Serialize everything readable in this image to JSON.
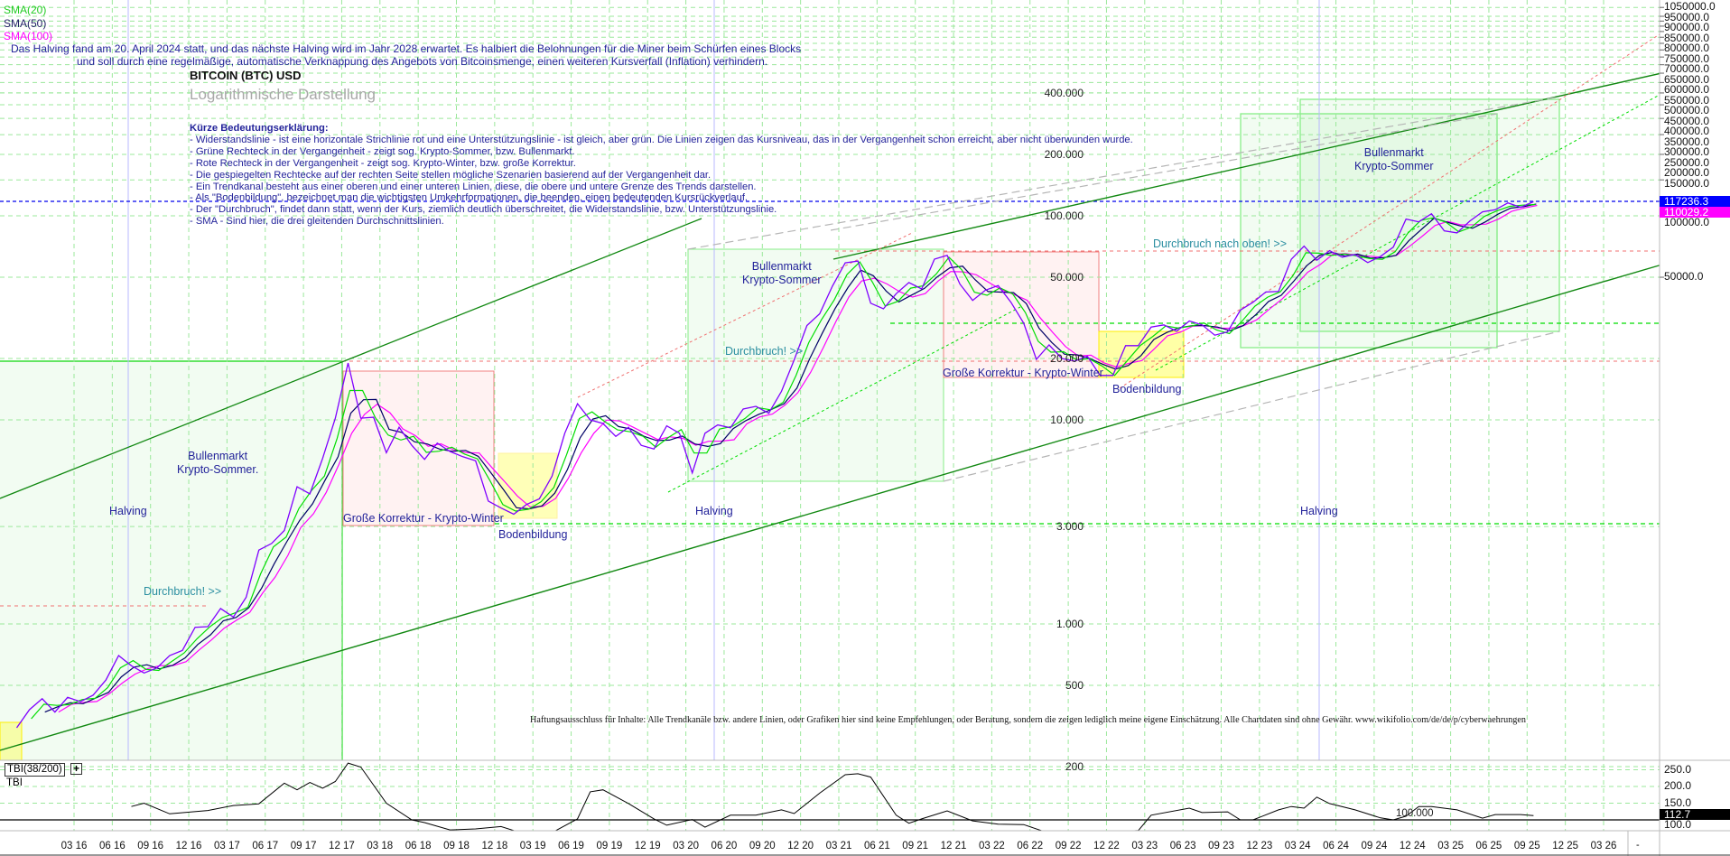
{
  "legend": {
    "sma20": "SMA(20)",
    "sma50": "SMA(50)",
    "sma100": "SMA(100)"
  },
  "info": {
    "line1": "Das Halving fand am 20. April 2024 statt, und das nächste Halving wird im Jahr 2028 erwartet. Es halbiert die Belohnungen für die Miner beim Schürfen eines Blocks",
    "line2": "und soll durch eine regelmäßige, automatische Verknappung des Angebots von Bitcoinsmenge, einen weiteren Kursverfall (Inflation) verhindern."
  },
  "title": "BITCOIN (BTC) USD",
  "subtitle": "Logarithmische Darstellung",
  "explanation": {
    "heading": "Kürze Bedeutungserklärung:",
    "items": [
      "- Widerstandslinie - ist eine horizontale Strichlinie rot und eine Unterstützungslinie - ist gleich, aber grün. Die Linien zeigen das Kursniveau, das in der Vergangenheit schon erreicht, aber nicht überwunden wurde.",
      "- Grüne Rechteck in der Vergangenheit - zeigt sog. Krypto-Sommer, bzw. Bullenmarkt.",
      " - Rote Rechteck in der Vergangenheit - zeigt sog. Krypto-Winter, bzw. große Korrektur.",
      "- Die gespiegelten Rechtecke auf der rechten Seite stellen mögliche Szenarien basierend auf der Vergangenheit dar.",
      "- Ein Trendkanal besteht aus einer oberen und einer unteren Linien, diese, die obere und untere Grenze des Trends darstellen.",
      "- Als \"Bodenbildung\", bezeichnet man die wichtigsten Umkehrformationen, die beenden, einen bedeutenden Kursrückverlauf.",
      "- Der \"Durchbruch\", findet dann statt, wenn der Kurs, ziemlich deutlich überschreitet, die Widerstandslinie, bzw. Unterstützungslinie.",
      "- SMA - Sind hier, die drei gleitenden Durchschnittslinien."
    ]
  },
  "annotations": {
    "bull_1_line1": "Bullenmarkt",
    "bull_1_line2": "Krypto-Sommer.",
    "bull_2_line1": "Bullenmarkt",
    "bull_2_line2": "Krypto-Sommer",
    "bull_3_line1": "Bullenmarkt",
    "bull_3_line2": "Krypto-Sommer",
    "breakout_1": "Durchbruch! >>",
    "breakout_2": "Durchbruch! >>",
    "breakout_3": "Durchbruch nach oben! >>",
    "correction_1": "Große Korrektur - Krypto-Winter",
    "correction_2": "Große Korrektur - Krypto-Winter",
    "bottom_1": "Bodenbildung",
    "bottom_2": "Bodenbildung",
    "halving_1": "Halving",
    "halving_2": "Halving",
    "halving_3": "Halving"
  },
  "disclaimer": "Haftungsausschluss für Inhalte: Alle Trendkanäle bzw. andere Linien, oder Grafiken hier sind keine Empfehlungen, oder Beratung, sondern die zeigen lediglich meine eigene Einschätzung. Alle Chartdaten sind ohne Gewähr.  www.wikifolio.com/de/de/p/cyberwaehrungen",
  "price_axis": {
    "labels": [
      "1050000.0",
      "950000.0",
      "900000.0",
      "850000.0",
      "800000.0",
      "750000.0",
      "700000.0",
      "650000.0",
      "600000.0",
      "550000.0",
      "500000.0",
      "450000.0",
      "400000.0",
      "350000.0",
      "300000.0",
      "250000.0",
      "200000.0",
      "150000.0",
      "100000.0",
      "50000.0"
    ],
    "current_price": "117236.3",
    "sma_value": "110029.2"
  },
  "inner_price_labels": [
    "400.000",
    "200.000",
    "100.000",
    "50.000",
    "20.000",
    "10.000",
    "3.000",
    "1.000",
    "500",
    "200"
  ],
  "indicator_panel": {
    "label": "TBI(38/200)",
    "plus": "+",
    "sub_label": "TBI",
    "level_label": "100.000",
    "axis_labels": [
      "250.0",
      "200.0",
      "150.0",
      "100.0"
    ],
    "current": "112.7"
  },
  "x_axis_end_mark": "-",
  "colors": {
    "price": "#7f00ff",
    "sma20": "#00dd00",
    "sma50": "#000066",
    "sma100": "#ff00ff",
    "current_price_badge": "#0000ff",
    "sma_badge": "#ff00ff",
    "tbi_badge": "#000000",
    "grid": "#9be89b",
    "resistance": "#f07070",
    "support": "#00cc00"
  },
  "chart_data": {
    "type": "line",
    "title": "BITCOIN (BTC) USD",
    "subtitle": "Logarithmische Darstellung",
    "y_scale": "log",
    "ylim": [
      200,
      1050000
    ],
    "grid": true,
    "x_tick_labels": [
      "03 16",
      "06 16",
      "09 16",
      "12 16",
      "03 17",
      "06 17",
      "09 17",
      "12 17",
      "03 18",
      "06 18",
      "09 18",
      "12 18",
      "03 19",
      "06 19",
      "09 19",
      "12 19",
      "03 20",
      "06 20",
      "09 20",
      "12 20",
      "03 21",
      "06 21",
      "09 21",
      "12 21",
      "03 22",
      "06 22",
      "09 22",
      "12 22",
      "03 23",
      "06 23",
      "09 23",
      "12 23",
      "03 24",
      "06 24",
      "09 24",
      "12 24",
      "03 25",
      "06 25",
      "09 25",
      "12 25",
      "03 26"
    ],
    "series": [
      {
        "name": "BTC USD",
        "dates": [
          "2015-10",
          "2015-11",
          "2015-12",
          "2016-01",
          "2016-02",
          "2016-03",
          "2016-04",
          "2016-05",
          "2016-06",
          "2016-07",
          "2016-08",
          "2016-09",
          "2016-10",
          "2016-11",
          "2016-12",
          "2017-01",
          "2017-02",
          "2017-03",
          "2017-04",
          "2017-05",
          "2017-06",
          "2017-07",
          "2017-08",
          "2017-09",
          "2017-10",
          "2017-11",
          "2017-12",
          "2018-01",
          "2018-02",
          "2018-03",
          "2018-04",
          "2018-05",
          "2018-06",
          "2018-07",
          "2018-08",
          "2018-09",
          "2018-10",
          "2018-11",
          "2018-12",
          "2019-01",
          "2019-02",
          "2019-03",
          "2019-04",
          "2019-05",
          "2019-06",
          "2019-07",
          "2019-08",
          "2019-09",
          "2019-10",
          "2019-11",
          "2019-12",
          "2020-01",
          "2020-02",
          "2020-03",
          "2020-04",
          "2020-05",
          "2020-06",
          "2020-07",
          "2020-08",
          "2020-09",
          "2020-10",
          "2020-11",
          "2020-12",
          "2021-01",
          "2021-02",
          "2021-03",
          "2021-04",
          "2021-05",
          "2021-06",
          "2021-07",
          "2021-08",
          "2021-09",
          "2021-10",
          "2021-11",
          "2021-12",
          "2022-01",
          "2022-02",
          "2022-03",
          "2022-04",
          "2022-05",
          "2022-06",
          "2022-07",
          "2022-08",
          "2022-09",
          "2022-10",
          "2022-11",
          "2022-12",
          "2023-01",
          "2023-02",
          "2023-03",
          "2023-04",
          "2023-05",
          "2023-06",
          "2023-07",
          "2023-08",
          "2023-09",
          "2023-10",
          "2023-11",
          "2023-12",
          "2024-01",
          "2024-02",
          "2024-03",
          "2024-04",
          "2024-05",
          "2024-06",
          "2024-07",
          "2024-08",
          "2024-09",
          "2024-10",
          "2024-11",
          "2024-12",
          "2025-01",
          "2025-02",
          "2025-03",
          "2025-04",
          "2025-05",
          "2025-06",
          "2025-07",
          "2025-08",
          "2025-09"
        ],
        "values": [
          310,
          380,
          430,
          370,
          437,
          416,
          448,
          531,
          700,
          624,
          575,
          609,
          700,
          742,
          963,
          970,
          1190,
          1080,
          1350,
          2300,
          2480,
          2870,
          4700,
          4340,
          6470,
          10200,
          19000,
          10200,
          10300,
          6900,
          9200,
          7500,
          6400,
          7700,
          7000,
          6600,
          6300,
          4000,
          3700,
          3450,
          3850,
          4100,
          5300,
          8600,
          12000,
          10000,
          9600,
          8300,
          9200,
          7500,
          7200,
          9350,
          8600,
          5500,
          8600,
          9450,
          9140,
          11300,
          11650,
          10780,
          13800,
          19700,
          29000,
          33100,
          45200,
          58800,
          60000,
          37300,
          35000,
          41500,
          47100,
          43800,
          61300,
          64000,
          46300,
          38500,
          43200,
          45500,
          37700,
          29800,
          19800,
          23300,
          20000,
          19400,
          20500,
          16500,
          16500,
          23100,
          23100,
          28500,
          29200,
          27200,
          30500,
          29200,
          26000,
          27000,
          34500,
          37700,
          42300,
          42600,
          61200,
          71000,
          60600,
          67500,
          62700,
          64600,
          59000,
          63300,
          70200,
          96400,
          93400,
          102400,
          84400,
          82500,
          94200,
          104600,
          107100,
          115700,
          110000,
          117236.3
        ]
      }
    ],
    "moving_averages": [
      {
        "name": "SMA(20)",
        "period_days": 20
      },
      {
        "name": "SMA(50)",
        "period_days": 50
      },
      {
        "name": "SMA(100)",
        "period_days": 100
      }
    ],
    "indicator": {
      "name": "TBI(38/200)",
      "reference_level": 100,
      "ylim": [
        40,
        270
      ],
      "dates": [
        "2016-07",
        "2016-08",
        "2016-10",
        "2017-01",
        "2017-03",
        "2017-05",
        "2017-07",
        "2017-08",
        "2017-09",
        "2017-10",
        "2017-11",
        "2017-12",
        "2018-01",
        "2018-03",
        "2018-05",
        "2018-06",
        "2018-08",
        "2018-10",
        "2018-12",
        "2019-01",
        "2019-02",
        "2019-04",
        "2019-06",
        "2019-07",
        "2019-08",
        "2019-10",
        "2019-12",
        "2020-01",
        "2020-03",
        "2020-04",
        "2020-06",
        "2020-08",
        "2020-10",
        "2020-11",
        "2021-01",
        "2021-03",
        "2021-04",
        "2021-05",
        "2021-07",
        "2021-08",
        "2021-09",
        "2021-11",
        "2022-01",
        "2022-03",
        "2022-05",
        "2022-07",
        "2022-08",
        "2022-10",
        "2022-12",
        "2023-02",
        "2023-03",
        "2023-06",
        "2023-07",
        "2023-09",
        "2023-10",
        "2023-11",
        "2024-01",
        "2024-02",
        "2024-03",
        "2024-04",
        "2024-05",
        "2024-07",
        "2024-09",
        "2024-10",
        "2024-11",
        "2024-12",
        "2025-01",
        "2025-03",
        "2025-05",
        "2025-06",
        "2025-08",
        "2025-09"
      ],
      "values": [
        140,
        150,
        118,
        128,
        143,
        148,
        210,
        190,
        212,
        195,
        215,
        270,
        258,
        150,
        100,
        92,
        70,
        73,
        80,
        68,
        52,
        62,
        103,
        184,
        190,
        149,
        103,
        84,
        101,
        78,
        114,
        114,
        130,
        119,
        180,
        235,
        238,
        228,
        114,
        90,
        103,
        127,
        97,
        87,
        86,
        60,
        49,
        60,
        64,
        68,
        114,
        135,
        122,
        124,
        100,
        100,
        130,
        140,
        135,
        168,
        149,
        130,
        106,
        100,
        111,
        140,
        140,
        130,
        105,
        116,
        116,
        112.7
      ]
    }
  }
}
